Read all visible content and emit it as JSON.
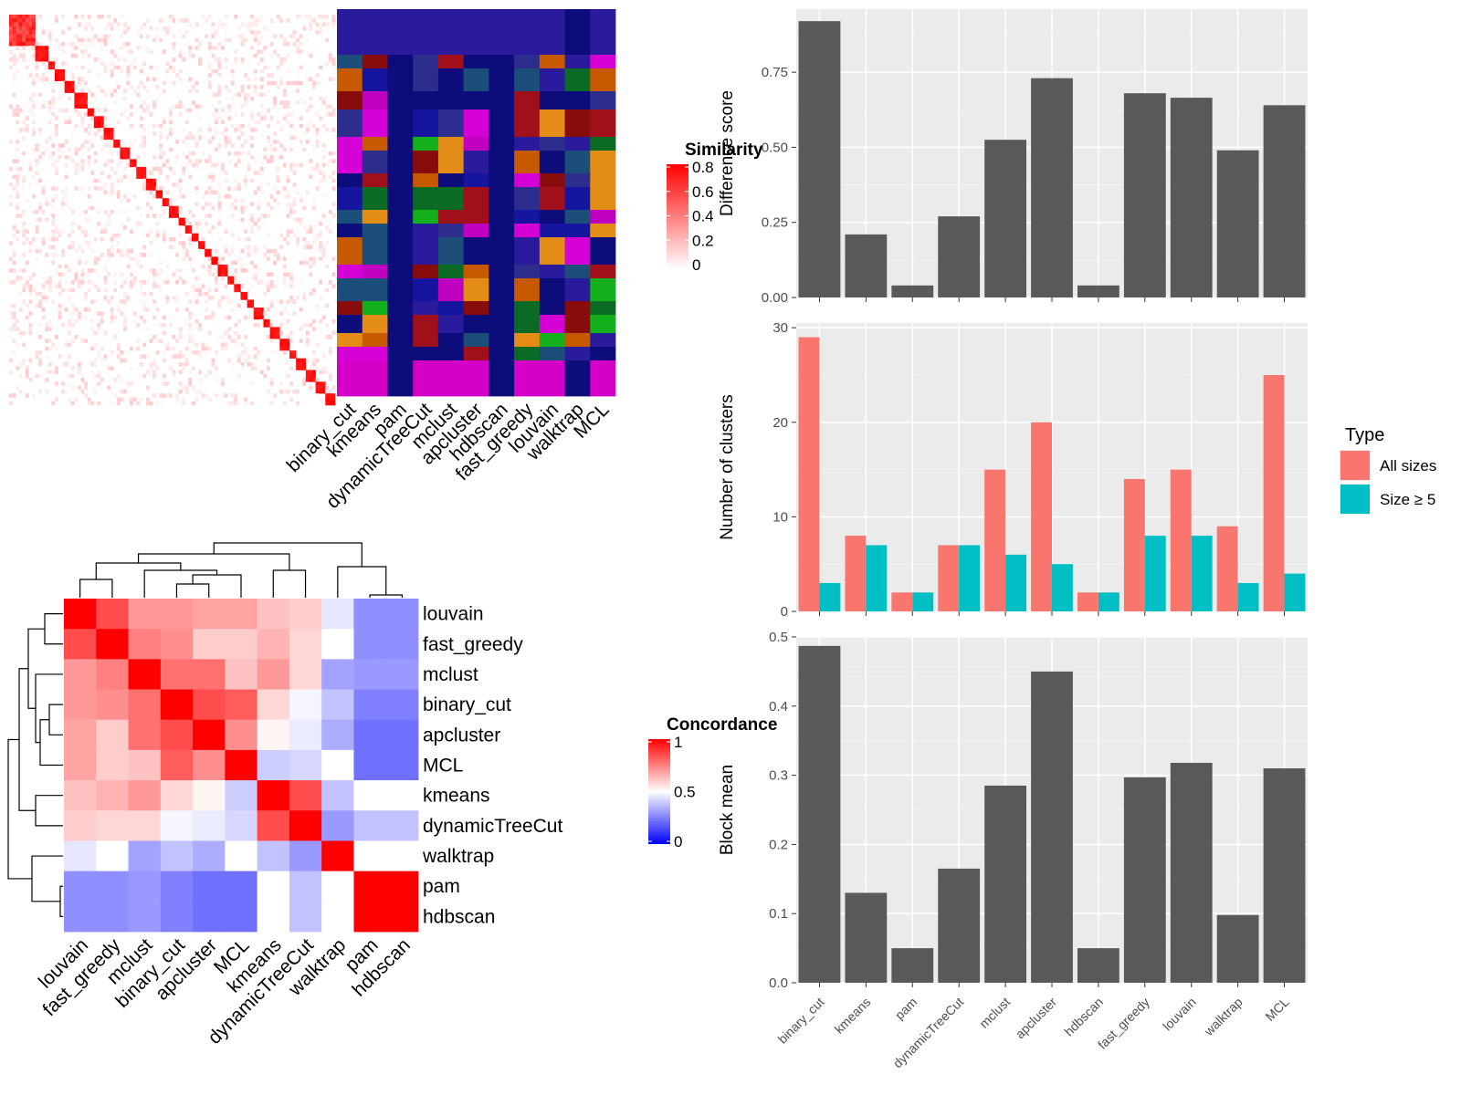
{
  "methods_order": [
    "binary_cut",
    "kmeans",
    "pam",
    "dynamicTreeCut",
    "mclust",
    "apcluster",
    "hdbscan",
    "fast_greedy",
    "louvain",
    "walktrap",
    "MCL"
  ],
  "similarity_legend": {
    "title": "Similarity",
    "ticks": [
      "0.8",
      "0.6",
      "0.4",
      "0.2",
      "0"
    ],
    "low_color": "#ffffff",
    "high_color": "#ff0000"
  },
  "concordance_legend": {
    "title": "Concordance",
    "ticks": [
      "1",
      "0.5",
      "0"
    ],
    "low_color": "#0000ff",
    "mid_color": "#ffffff",
    "high_color": "#ff0000"
  },
  "type_legend": {
    "title": "Type",
    "items": [
      {
        "label": "All sizes",
        "color": "#F8766D"
      },
      {
        "label": "Size ≥ 5",
        "color": "#00BFC4"
      }
    ]
  },
  "chart_data": [
    {
      "type": "bar",
      "id": "difference-score",
      "categories": [
        "binary_cut",
        "kmeans",
        "pam",
        "dynamicTreeCut",
        "mclust",
        "apcluster",
        "hdbscan",
        "fast_greedy",
        "louvain",
        "walktrap",
        "MCL"
      ],
      "values": [
        0.92,
        0.21,
        0.04,
        0.27,
        0.525,
        0.73,
        0.04,
        0.68,
        0.665,
        0.49,
        0.64
      ],
      "ylabel": "Difference score",
      "ylim": [
        0,
        0.96
      ],
      "yticks": [
        "0.00",
        "0.25",
        "0.50",
        "0.75"
      ],
      "yticks_values": [
        0,
        0.25,
        0.5,
        0.75
      ],
      "bar_color": "#595959"
    },
    {
      "type": "bar",
      "id": "number-of-clusters",
      "categories": [
        "binary_cut",
        "kmeans",
        "pam",
        "dynamicTreeCut",
        "mclust",
        "apcluster",
        "hdbscan",
        "fast_greedy",
        "louvain",
        "walktrap",
        "MCL"
      ],
      "series": [
        {
          "name": "All sizes",
          "color": "#F8766D",
          "values": [
            29,
            8,
            2,
            7,
            15,
            20,
            2,
            14,
            15,
            9,
            25
          ]
        },
        {
          "name": "Size ≥ 5",
          "color": "#00BFC4",
          "values": [
            3,
            7,
            2,
            7,
            6,
            5,
            2,
            8,
            8,
            3,
            4
          ]
        }
      ],
      "ylabel": "Number of clusters",
      "ylim": [
        0,
        30.5
      ],
      "yticks": [
        "0",
        "10",
        "20",
        "30"
      ],
      "yticks_values": [
        0,
        10,
        20,
        30
      ]
    },
    {
      "type": "bar",
      "id": "block-mean",
      "categories": [
        "binary_cut",
        "kmeans",
        "pam",
        "dynamicTreeCut",
        "mclust",
        "apcluster",
        "hdbscan",
        "fast_greedy",
        "louvain",
        "walktrap",
        "MCL"
      ],
      "values": [
        0.487,
        0.13,
        0.05,
        0.165,
        0.285,
        0.45,
        0.05,
        0.297,
        0.318,
        0.098,
        0.31
      ],
      "ylabel": "Block mean",
      "ylim": [
        0,
        0.5
      ],
      "yticks": [
        "0.0",
        "0.1",
        "0.2",
        "0.3",
        "0.4",
        "0.5"
      ],
      "yticks_values": [
        0,
        0.1,
        0.2,
        0.3,
        0.4,
        0.5
      ],
      "bar_color": "#595959"
    },
    {
      "type": "heatmap",
      "id": "concordance-heatmap",
      "rows": [
        "louvain",
        "fast_greedy",
        "mclust",
        "binary_cut",
        "apcluster",
        "MCL",
        "kmeans",
        "dynamicTreeCut",
        "walktrap",
        "pam",
        "hdbscan"
      ],
      "cols": [
        "louvain",
        "fast_greedy",
        "mclust",
        "binary_cut",
        "apcluster",
        "MCL",
        "kmeans",
        "dynamicTreeCut",
        "walktrap",
        "pam",
        "hdbscan"
      ],
      "values": [
        [
          1.0,
          0.85,
          0.7,
          0.7,
          0.68,
          0.68,
          0.62,
          0.6,
          0.45,
          0.28,
          0.28
        ],
        [
          0.85,
          1.0,
          0.75,
          0.72,
          0.6,
          0.6,
          0.65,
          0.58,
          0.5,
          0.28,
          0.28
        ],
        [
          0.7,
          0.75,
          1.0,
          0.78,
          0.78,
          0.62,
          0.7,
          0.58,
          0.32,
          0.3,
          0.3
        ],
        [
          0.7,
          0.72,
          0.78,
          1.0,
          0.85,
          0.82,
          0.58,
          0.48,
          0.38,
          0.25,
          0.25
        ],
        [
          0.68,
          0.6,
          0.78,
          0.85,
          1.0,
          0.72,
          0.52,
          0.46,
          0.34,
          0.22,
          0.22
        ],
        [
          0.68,
          0.6,
          0.62,
          0.82,
          0.72,
          1.0,
          0.4,
          0.42,
          0.5,
          0.22,
          0.22
        ],
        [
          0.62,
          0.65,
          0.7,
          0.58,
          0.52,
          0.4,
          1.0,
          0.85,
          0.38,
          0.5,
          0.5
        ],
        [
          0.6,
          0.58,
          0.58,
          0.48,
          0.46,
          0.42,
          0.85,
          1.0,
          0.3,
          0.38,
          0.38
        ],
        [
          0.45,
          0.5,
          0.32,
          0.38,
          0.34,
          0.5,
          0.38,
          0.3,
          1.0,
          0.5,
          0.5
        ],
        [
          0.28,
          0.28,
          0.3,
          0.25,
          0.22,
          0.22,
          0.5,
          0.38,
          0.5,
          1.0,
          1.0
        ],
        [
          0.28,
          0.28,
          0.3,
          0.25,
          0.22,
          0.22,
          0.5,
          0.38,
          0.5,
          1.0,
          1.0
        ]
      ]
    },
    {
      "type": "heatmap",
      "id": "similarity-heatmap",
      "note_size": 100
    }
  ]
}
